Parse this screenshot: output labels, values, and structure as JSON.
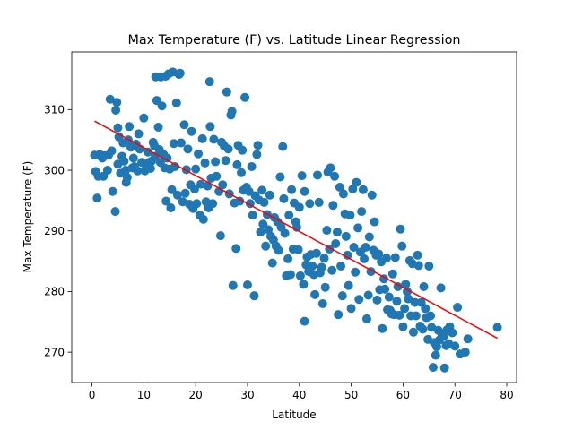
{
  "chart_data": {
    "type": "scatter",
    "title": "Max Temperature (F) vs. Latitude Linear Regression",
    "xlabel": "Latitude",
    "ylabel": "Max Temperature (F)",
    "xlim": [
      -3.9,
      81.9
    ],
    "ylim": [
      265,
      319.5
    ],
    "xticks": [
      0,
      10,
      20,
      30,
      40,
      50,
      60,
      70,
      80
    ],
    "yticks": [
      270,
      280,
      290,
      300,
      310
    ],
    "grid": false,
    "legend": "none",
    "marker_color": "#1f77b4",
    "regression": {
      "color": "#ff0000",
      "points": [
        [
          0.5,
          308.1
        ],
        [
          78.2,
          272.3
        ]
      ]
    },
    "points": [
      [
        0.5,
        302.5
      ],
      [
        0.7,
        299.8
      ],
      [
        1.0,
        295.4
      ],
      [
        1.2,
        299.0
      ],
      [
        1.5,
        302.6
      ],
      [
        2.0,
        302.0
      ],
      [
        2.2,
        299.0
      ],
      [
        2.5,
        302.4
      ],
      [
        3.0,
        300.0
      ],
      [
        3.2,
        302.5
      ],
      [
        3.5,
        311.7
      ],
      [
        3.8,
        303.2
      ],
      [
        4.0,
        296.5
      ],
      [
        4.5,
        293.2
      ],
      [
        4.6,
        309.9
      ],
      [
        4.8,
        311.2
      ],
      [
        5.0,
        307.0
      ],
      [
        5.0,
        301.0
      ],
      [
        5.2,
        305.5
      ],
      [
        5.5,
        299.5
      ],
      [
        5.8,
        302.3
      ],
      [
        6.0,
        304.5
      ],
      [
        6.2,
        301.5
      ],
      [
        6.5,
        300.0
      ],
      [
        6.6,
        298.0
      ],
      [
        6.8,
        298.8
      ],
      [
        7.0,
        305.0
      ],
      [
        7.2,
        307.2
      ],
      [
        7.5,
        303.8
      ],
      [
        7.8,
        300.4
      ],
      [
        8.0,
        302.0
      ],
      [
        8.2,
        300.6
      ],
      [
        8.5,
        304.3
      ],
      [
        8.8,
        299.9
      ],
      [
        9.0,
        306.0
      ],
      [
        9.2,
        303.5
      ],
      [
        9.6,
        301.3
      ],
      [
        10.0,
        308.6
      ],
      [
        10.2,
        299.9
      ],
      [
        10.5,
        300.5
      ],
      [
        10.8,
        303.0
      ],
      [
        11.0,
        301.3
      ],
      [
        11.3,
        300.3
      ],
      [
        11.5,
        301.5
      ],
      [
        11.8,
        304.6
      ],
      [
        12.0,
        304.1
      ],
      [
        12.2,
        302.3
      ],
      [
        12.3,
        315.4
      ],
      [
        12.5,
        311.5
      ],
      [
        12.8,
        307.1
      ],
      [
        13.0,
        303.4
      ],
      [
        13.2,
        301.3
      ],
      [
        13.3,
        315.4
      ],
      [
        13.5,
        310.6
      ],
      [
        13.8,
        302.6
      ],
      [
        14.0,
        300.4
      ],
      [
        14.2,
        315.5
      ],
      [
        14.3,
        294.9
      ],
      [
        14.5,
        302.0
      ],
      [
        14.8,
        315.9
      ],
      [
        15.0,
        300.2
      ],
      [
        15.2,
        293.8
      ],
      [
        15.4,
        296.8
      ],
      [
        15.6,
        316.2
      ],
      [
        15.8,
        304.4
      ],
      [
        16.0,
        300.6
      ],
      [
        16.3,
        311.1
      ],
      [
        16.5,
        295.9
      ],
      [
        16.8,
        315.8
      ],
      [
        17.0,
        316.0
      ],
      [
        17.2,
        304.5
      ],
      [
        17.5,
        294.8
      ],
      [
        17.8,
        307.5
      ],
      [
        18.0,
        296.2
      ],
      [
        18.2,
        300.1
      ],
      [
        18.5,
        303.5
      ],
      [
        18.8,
        294.4
      ],
      [
        19.0,
        297.6
      ],
      [
        19.2,
        306.4
      ],
      [
        19.5,
        293.7
      ],
      [
        19.8,
        296.9
      ],
      [
        20.0,
        300.2
      ],
      [
        20.2,
        294.5
      ],
      [
        20.5,
        302.7
      ],
      [
        20.8,
        292.6
      ],
      [
        21.0,
        297.7
      ],
      [
        21.3,
        305.2
      ],
      [
        21.5,
        291.9
      ],
      [
        21.8,
        301.2
      ],
      [
        22.0,
        294.8
      ],
      [
        22.3,
        297.4
      ],
      [
        22.5,
        293.8
      ],
      [
        22.7,
        314.6
      ],
      [
        22.8,
        307.2
      ],
      [
        23.0,
        298.7
      ],
      [
        23.3,
        294.5
      ],
      [
        23.5,
        305.1
      ],
      [
        23.8,
        301.4
      ],
      [
        24.0,
        299.0
      ],
      [
        24.5,
        296.5
      ],
      [
        24.8,
        289.2
      ],
      [
        25.0,
        304.6
      ],
      [
        25.2,
        297.6
      ],
      [
        25.5,
        304.0
      ],
      [
        25.8,
        301.6
      ],
      [
        26.0,
        312.9
      ],
      [
        26.3,
        303.5
      ],
      [
        26.5,
        296.1
      ],
      [
        26.8,
        309.1
      ],
      [
        27.0,
        309.7
      ],
      [
        27.2,
        281.0
      ],
      [
        27.5,
        294.6
      ],
      [
        27.8,
        287.1
      ],
      [
        28.0,
        300.9
      ],
      [
        28.2,
        304.1
      ],
      [
        28.5,
        294.9
      ],
      [
        28.8,
        299.6
      ],
      [
        29.0,
        303.3
      ],
      [
        29.2,
        296.7
      ],
      [
        29.5,
        312.0
      ],
      [
        29.8,
        297.2
      ],
      [
        30.0,
        281.1
      ],
      [
        30.3,
        296.5
      ],
      [
        30.5,
        294.5
      ],
      [
        30.8,
        300.6
      ],
      [
        31.0,
        292.6
      ],
      [
        31.3,
        279.3
      ],
      [
        31.5,
        295.8
      ],
      [
        31.8,
        302.6
      ],
      [
        32.0,
        304.1
      ],
      [
        32.2,
        295.1
      ],
      [
        32.5,
        289.8
      ],
      [
        32.8,
        296.7
      ],
      [
        33.0,
        291.1
      ],
      [
        33.2,
        294.7
      ],
      [
        33.5,
        287.5
      ],
      [
        33.8,
        292.7
      ],
      [
        34.0,
        290.2
      ],
      [
        34.3,
        295.9
      ],
      [
        34.5,
        289.1
      ],
      [
        34.8,
        284.7
      ],
      [
        35.0,
        288.5
      ],
      [
        35.2,
        292.2
      ],
      [
        35.5,
        287.5
      ],
      [
        35.8,
        291.5
      ],
      [
        36.0,
        286.8
      ],
      [
        36.3,
        298.9
      ],
      [
        36.5,
        290.6
      ],
      [
        36.8,
        303.9
      ],
      [
        37.0,
        295.3
      ],
      [
        37.2,
        289.6
      ],
      [
        37.5,
        282.6
      ],
      [
        37.8,
        285.4
      ],
      [
        38.0,
        292.6
      ],
      [
        38.3,
        282.8
      ],
      [
        38.5,
        296.8
      ],
      [
        38.8,
        287.0
      ],
      [
        39.0,
        294.6
      ],
      [
        39.3,
        291.5
      ],
      [
        39.5,
        290.6
      ],
      [
        39.8,
        286.9
      ],
      [
        40.0,
        293.9
      ],
      [
        40.2,
        282.6
      ],
      [
        40.5,
        299.1
      ],
      [
        40.8,
        281.2
      ],
      [
        41.0,
        296.5
      ],
      [
        41.0,
        275.1
      ],
      [
        41.3,
        284.4
      ],
      [
        41.5,
        285.7
      ],
      [
        41.8,
        283.3
      ],
      [
        42.0,
        294.5
      ],
      [
        42.2,
        286.1
      ],
      [
        42.5,
        284.2
      ],
      [
        42.8,
        282.8
      ],
      [
        43.0,
        279.5
      ],
      [
        43.3,
        286.3
      ],
      [
        43.5,
        299.2
      ],
      [
        43.8,
        294.7
      ],
      [
        44.0,
        283.1
      ],
      [
        44.3,
        284.0
      ],
      [
        44.5,
        278.0
      ],
      [
        44.8,
        285.5
      ],
      [
        45.0,
        280.7
      ],
      [
        45.3,
        290.1
      ],
      [
        45.5,
        299.7
      ],
      [
        45.8,
        287.0
      ],
      [
        46.0,
        300.4
      ],
      [
        46.3,
        283.5
      ],
      [
        46.5,
        294.2
      ],
      [
        46.8,
        299.0
      ],
      [
        47.0,
        287.9
      ],
      [
        47.3,
        289.8
      ],
      [
        47.5,
        276.2
      ],
      [
        47.8,
        297.2
      ],
      [
        48.0,
        284.2
      ],
      [
        48.3,
        279.3
      ],
      [
        48.5,
        296.1
      ],
      [
        48.8,
        292.8
      ],
      [
        49.0,
        289.1
      ],
      [
        49.3,
        286.0
      ],
      [
        49.5,
        281.0
      ],
      [
        49.8,
        292.6
      ],
      [
        50.0,
        277.2
      ],
      [
        50.3,
        296.9
      ],
      [
        50.5,
        287.3
      ],
      [
        50.8,
        283.2
      ],
      [
        51.0,
        298.0
      ],
      [
        51.3,
        290.5
      ],
      [
        51.5,
        278.7
      ],
      [
        51.8,
        286.5
      ],
      [
        52.0,
        293.2
      ],
      [
        52.3,
        296.8
      ],
      [
        52.5,
        285.4
      ],
      [
        52.8,
        287.3
      ],
      [
        53.0,
        275.5
      ],
      [
        53.3,
        279.4
      ],
      [
        53.5,
        289.0
      ],
      [
        53.8,
        283.3
      ],
      [
        54.0,
        295.9
      ],
      [
        54.3,
        286.8
      ],
      [
        54.5,
        291.5
      ],
      [
        54.8,
        286.0
      ],
      [
        55.0,
        278.6
      ],
      [
        55.3,
        286.2
      ],
      [
        55.5,
        280.3
      ],
      [
        55.8,
        284.9
      ],
      [
        56.0,
        273.9
      ],
      [
        56.3,
        282.1
      ],
      [
        56.5,
        280.4
      ],
      [
        56.8,
        285.5
      ],
      [
        57.0,
        277.0
      ],
      [
        57.3,
        279.1
      ],
      [
        57.5,
        276.9
      ],
      [
        57.8,
        276.3
      ],
      [
        58.0,
        282.9
      ],
      [
        58.3,
        276.2
      ],
      [
        58.5,
        285.6
      ],
      [
        58.8,
        278.4
      ],
      [
        59.0,
        280.8
      ],
      [
        59.3,
        276.1
      ],
      [
        59.5,
        290.3
      ],
      [
        59.8,
        287.5
      ],
      [
        60.0,
        274.2
      ],
      [
        60.3,
        277.2
      ],
      [
        60.5,
        281.2
      ],
      [
        60.8,
        280.0
      ],
      [
        61.0,
        278.8
      ],
      [
        61.3,
        285.1
      ],
      [
        61.5,
        276.0
      ],
      [
        61.8,
        284.6
      ],
      [
        62.0,
        273.3
      ],
      [
        62.3,
        278.2
      ],
      [
        62.5,
        276.0
      ],
      [
        62.8,
        286.0
      ],
      [
        63.0,
        284.3
      ],
      [
        63.3,
        274.3
      ],
      [
        63.5,
        278.2
      ],
      [
        63.8,
        273.8
      ],
      [
        64.0,
        280.8
      ],
      [
        64.3,
        277.2
      ],
      [
        64.5,
        275.7
      ],
      [
        64.8,
        272.1
      ],
      [
        65.0,
        284.2
      ],
      [
        65.3,
        276.0
      ],
      [
        65.5,
        274.1
      ],
      [
        65.8,
        267.5
      ],
      [
        66.0,
        271.6
      ],
      [
        66.3,
        269.5
      ],
      [
        66.5,
        270.9
      ],
      [
        66.8,
        273.6
      ],
      [
        67.0,
        272.0
      ],
      [
        67.3,
        280.6
      ],
      [
        67.5,
        273.0
      ],
      [
        67.8,
        272.6
      ],
      [
        68.0,
        267.4
      ],
      [
        68.3,
        271.1
      ],
      [
        68.5,
        273.7
      ],
      [
        68.8,
        271.4
      ],
      [
        69.0,
        274.2
      ],
      [
        69.5,
        273.2
      ],
      [
        70.0,
        271.0
      ],
      [
        70.5,
        277.4
      ],
      [
        71.0,
        269.7
      ],
      [
        72.0,
        270.0
      ],
      [
        72.5,
        272.2
      ],
      [
        78.2,
        274.1
      ]
    ]
  }
}
